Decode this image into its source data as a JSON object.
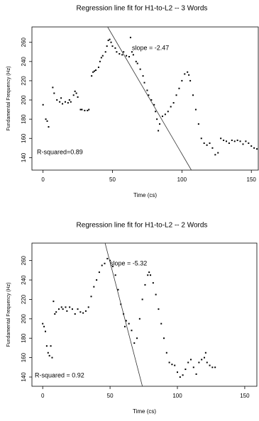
{
  "chart_data": [
    {
      "type": "scatter",
      "title": "Regression line fit for H1-to-L2 -- 3 Words",
      "x_label": "Time (cs)",
      "y_label": "Fundamental Frequency (Hz)",
      "annotations": [
        "slope = -2.47",
        "R-squared=0.89"
      ],
      "xlim": [
        -8,
        155
      ],
      "ylim": [
        127,
        276
      ],
      "xticks": [
        0,
        50,
        100,
        150
      ],
      "yticks": [
        140,
        160,
        180,
        200,
        220,
        240,
        260
      ],
      "color": "#000000",
      "x": [
        0,
        2,
        3,
        4,
        7,
        8,
        10,
        12,
        13,
        14,
        16,
        18,
        19,
        20,
        22,
        23,
        24,
        25,
        27,
        28,
        30,
        32,
        33,
        35,
        36,
        37,
        38,
        40,
        41,
        42,
        43,
        45,
        46,
        47,
        48,
        49,
        50,
        52,
        53,
        55,
        57,
        58,
        60,
        62,
        63,
        64,
        65,
        67,
        68,
        70,
        72,
        73,
        75,
        76,
        78,
        80,
        81,
        82,
        83,
        84,
        86,
        88,
        90,
        92,
        94,
        96,
        98,
        100,
        102,
        104,
        105,
        106,
        108,
        110,
        112,
        114,
        116,
        118,
        120,
        122,
        124,
        126,
        128,
        130,
        132,
        134,
        136,
        138,
        140,
        142,
        144,
        146,
        148,
        150,
        152,
        154
      ],
      "values": [
        195,
        180,
        178,
        172,
        213,
        207,
        200,
        198,
        202,
        196,
        198,
        197,
        200,
        198,
        205,
        209,
        207,
        203,
        190,
        190,
        189,
        189,
        190,
        225,
        229,
        230,
        231,
        234,
        240,
        244,
        246,
        250,
        256,
        262,
        263,
        260,
        256,
        254,
        250,
        248,
        247,
        250,
        246,
        245,
        265,
        250,
        247,
        240,
        238,
        232,
        225,
        218,
        210,
        205,
        200,
        195,
        188,
        180,
        168,
        175,
        183,
        185,
        188,
        193,
        197,
        205,
        212,
        220,
        227,
        229,
        226,
        220,
        205,
        190,
        175,
        160,
        155,
        153,
        155,
        150,
        143,
        145,
        160,
        158,
        157,
        155,
        158,
        157,
        158,
        157,
        154,
        157,
        155,
        152,
        150,
        149
      ],
      "fit_line": {
        "x": [
          46.5,
          106.8
        ],
        "values": [
          276,
          127
        ]
      }
    },
    {
      "type": "scatter",
      "title": "Regression line fit for H1-to-L2 -- 2 Words",
      "x_label": "Time (cs)",
      "y_label": "Fundamental Frequency (Hz)",
      "annotations": [
        "slope = -5.32",
        "R-squared = 0.92"
      ],
      "xlim": [
        -8,
        159
      ],
      "ylim": [
        130.5,
        278
      ],
      "xticks": [
        0,
        50,
        100,
        150
      ],
      "yticks": [
        140,
        160,
        180,
        200,
        220,
        240,
        260
      ],
      "color": "#000000",
      "x": [
        0,
        1,
        2,
        3,
        4,
        5,
        6,
        7,
        8,
        9,
        10,
        12,
        14,
        15,
        17,
        18,
        20,
        22,
        24,
        26,
        28,
        30,
        32,
        34,
        36,
        38,
        40,
        42,
        44,
        46,
        48,
        50,
        52,
        54,
        56,
        58,
        60,
        61,
        62,
        64,
        66,
        68,
        70,
        72,
        74,
        76,
        78,
        79,
        80,
        82,
        84,
        86,
        88,
        90,
        92,
        94,
        96,
        98,
        100,
        102,
        104,
        106,
        108,
        110,
        112,
        114,
        116,
        118,
        120,
        121,
        122,
        124,
        126,
        128
      ],
      "values": [
        195,
        192,
        187,
        172,
        165,
        162,
        172,
        160,
        218,
        205,
        207,
        210,
        212,
        210,
        212,
        208,
        212,
        210,
        205,
        210,
        207,
        206,
        208,
        212,
        223,
        233,
        240,
        248,
        255,
        257,
        262,
        260,
        254,
        245,
        230,
        215,
        205,
        192,
        198,
        195,
        188,
        175,
        180,
        200,
        220,
        235,
        245,
        248,
        245,
        237,
        225,
        210,
        195,
        180,
        165,
        155,
        153,
        152,
        145,
        140,
        142,
        148,
        155,
        158,
        150,
        143,
        155,
        158,
        160,
        165,
        155,
        152,
        150,
        150
      ],
      "fit_line": {
        "x": [
          46.3,
          74.0
        ],
        "values": [
          278,
          130.5
        ]
      }
    }
  ]
}
